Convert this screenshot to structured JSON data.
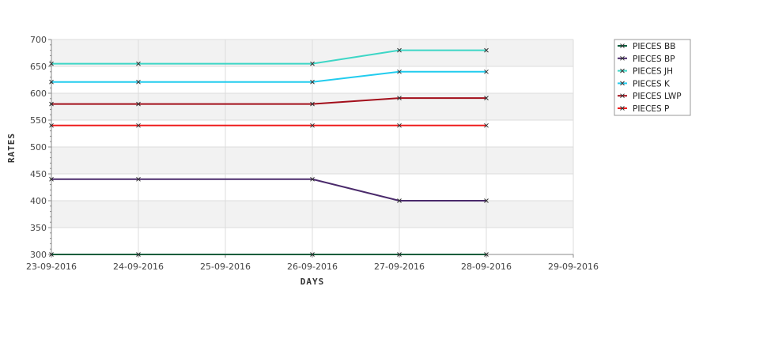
{
  "chart_data": {
    "type": "line",
    "xlabel": "DAYS",
    "ylabel": "RATES",
    "x": [
      "23-09-2016",
      "24-09-2016",
      "26-09-2016",
      "27-09-2016",
      "28-09-2016"
    ],
    "x_ticks": [
      "23-09-2016",
      "24-09-2016",
      "25-09-2016",
      "26-09-2016",
      "27-09-2016",
      "28-09-2016",
      "29-09-2016"
    ],
    "ylim": [
      300,
      700
    ],
    "y_ticks": [
      300,
      350,
      400,
      450,
      500,
      550,
      600,
      650,
      700
    ],
    "grid": true,
    "legend_position": "top-right",
    "series": [
      {
        "name": "PIECES BB",
        "color": "#0b5e3c",
        "values": [
          300,
          300,
          300,
          300,
          300
        ]
      },
      {
        "name": "PIECES BP",
        "color": "#4a2a6b",
        "values": [
          440,
          440,
          440,
          400,
          400
        ]
      },
      {
        "name": "PIECES JH",
        "color": "#3dd6c6",
        "values": [
          655,
          655,
          655,
          680,
          680
        ]
      },
      {
        "name": "PIECES K",
        "color": "#22ccee",
        "values": [
          621,
          621,
          621,
          640,
          640
        ]
      },
      {
        "name": "PIECES LWP",
        "color": "#a30f1b",
        "values": [
          580,
          580,
          580,
          591,
          591
        ]
      },
      {
        "name": "PIECES P",
        "color": "#ee1c1c",
        "values": [
          540,
          540,
          540,
          540,
          540
        ]
      }
    ]
  }
}
